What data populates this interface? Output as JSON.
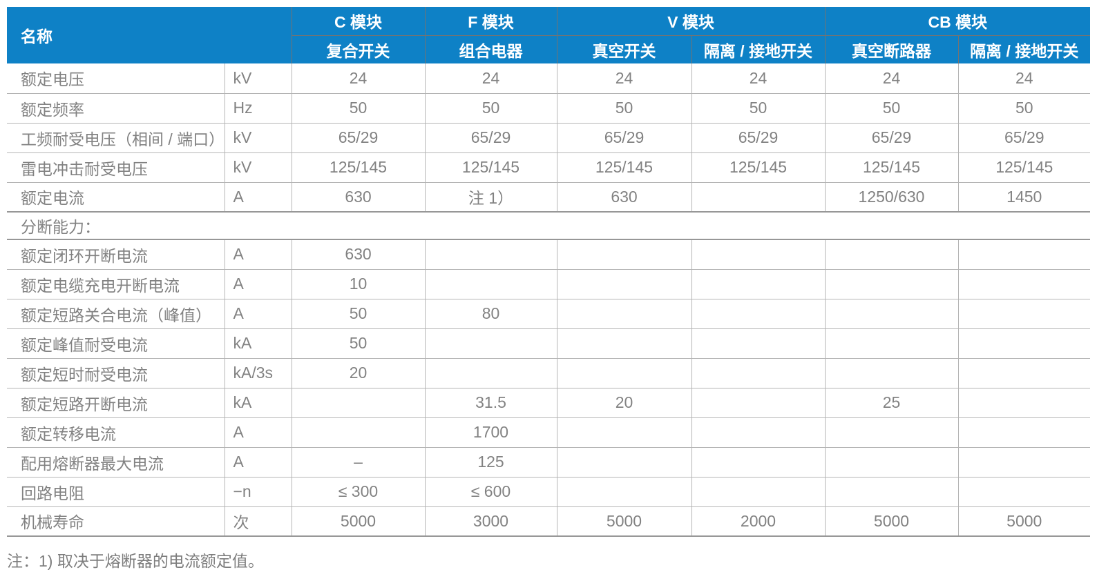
{
  "table": {
    "corner_label": "名称",
    "groups": [
      {
        "label": "C 模块",
        "subs": [
          "复合开关"
        ]
      },
      {
        "label": "F 模块",
        "subs": [
          "组合电器"
        ]
      },
      {
        "label": "V 模块",
        "subs": [
          "真空开关",
          "隔离 / 接地开关"
        ]
      },
      {
        "label": "CB 模块",
        "subs": [
          "真空断路器",
          "隔离 / 接地开关"
        ]
      }
    ],
    "rows": [
      {
        "type": "data",
        "label": "额定电压",
        "unit": "kV",
        "values": [
          "24",
          "24",
          "24",
          "24",
          "24",
          "24"
        ]
      },
      {
        "type": "data",
        "label": "额定频率",
        "unit": "Hz",
        "values": [
          "50",
          "50",
          "50",
          "50",
          "50",
          "50"
        ]
      },
      {
        "type": "data",
        "label": "工频耐受电压（相间 / 端口）",
        "unit": "kV",
        "values": [
          "65/29",
          "65/29",
          "65/29",
          "65/29",
          "65/29",
          "65/29"
        ]
      },
      {
        "type": "data",
        "label": "雷电冲击耐受电压",
        "unit": "kV",
        "values": [
          "125/145",
          "125/145",
          "125/145",
          "125/145",
          "125/145",
          "125/145"
        ]
      },
      {
        "type": "data",
        "label": "额定电流",
        "unit": "A",
        "values": [
          "630",
          "注 1）",
          "630",
          "",
          "1250/630",
          "1450"
        ]
      },
      {
        "type": "section",
        "label": "分断能力："
      },
      {
        "type": "data",
        "label": "额定闭环开断电流",
        "unit": "A",
        "values": [
          "630",
          "",
          "",
          "",
          "",
          ""
        ]
      },
      {
        "type": "data",
        "label": "额定电缆充电开断电流",
        "unit": "A",
        "values": [
          "10",
          "",
          "",
          "",
          "",
          ""
        ]
      },
      {
        "type": "data",
        "label": "额定短路关合电流（峰值）",
        "unit": "A",
        "values": [
          "50",
          "80",
          "",
          "",
          "",
          ""
        ]
      },
      {
        "type": "data",
        "label": "额定峰值耐受电流",
        "unit": "kA",
        "values": [
          "50",
          "",
          "",
          "",
          "",
          ""
        ]
      },
      {
        "type": "data",
        "label": "额定短时耐受电流",
        "unit": "kA/3s",
        "values": [
          "20",
          "",
          "",
          "",
          "",
          ""
        ]
      },
      {
        "type": "data",
        "label": "额定短路开断电流",
        "unit": "kA",
        "values": [
          "",
          "31.5",
          "20",
          "",
          "25",
          ""
        ]
      },
      {
        "type": "data",
        "label": "额定转移电流",
        "unit": "A",
        "values": [
          "",
          "1700",
          "",
          "",
          "",
          ""
        ]
      },
      {
        "type": "data",
        "label": "配用熔断器最大电流",
        "unit": "A",
        "values": [
          "–",
          "125",
          "",
          "",
          "",
          ""
        ]
      },
      {
        "type": "data",
        "label": "回路电阻",
        "unit": "−n",
        "values": [
          "≤ 300",
          "≤ 600",
          "",
          "",
          "",
          ""
        ]
      },
      {
        "type": "data",
        "label": "机械寿命",
        "unit": "次",
        "values": [
          "5000",
          "3000",
          "5000",
          "2000",
          "5000",
          "5000"
        ]
      }
    ],
    "note": "注：1) 取决于熔断器的电流额定值。"
  },
  "colors": {
    "header_bg": "#0e81c6",
    "header_text": "#ffffff",
    "header_grid": "#737373",
    "body_text": "#828282",
    "grid_line": "#b4b4b4",
    "thick_line": "#979797",
    "note_text": "#7d7d7d"
  }
}
